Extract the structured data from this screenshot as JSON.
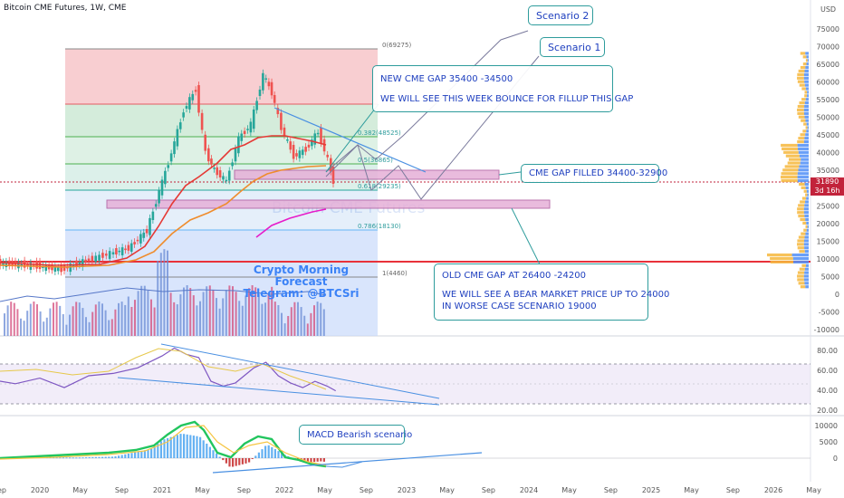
{
  "header": {
    "title": "Bitcoin CME Futures, 1W, CME",
    "currency": "USD"
  },
  "price_tag": {
    "price": "31890",
    "countdown": "3d 16h"
  },
  "forecast": {
    "line1": "Crypto Morning Forecast",
    "line2": "Telegram: @BTCSri"
  },
  "watermark": "Bitcoin CME Futures",
  "annotations": {
    "scenario2": "Scenario 2",
    "scenario1": "Scenario 1",
    "new_gap": [
      "NEW CME GAP 35400 -34500",
      "WE WILL SEE THIS WEEK BOUNCE FOR FILLUP THIS GAP"
    ],
    "gap_filled": "CME GAP FILLED 34400-32900",
    "old_gap": [
      "OLD CME GAP AT 26400 -24200",
      "WE WILL SEE A BEAR MARKET PRICE UP TO 24000",
      "IN WORSE CASE SCENARIO 19000"
    ],
    "macd": "MACD Bearish scenario"
  },
  "fib_labels": [
    {
      "label": "0(69275)",
      "price": 69275
    },
    {
      "label": "0.382(48525)",
      "price": 48525
    },
    {
      "label": "0.5(36865)",
      "price": 36865
    },
    {
      "label": "0.618(29235)",
      "price": 29235
    },
    {
      "label": "0.786(18130)",
      "price": 18130
    },
    {
      "label": "1(4460)",
      "price": 4460
    }
  ],
  "colors": {
    "accent_red": "#e8313a",
    "gap_fill": "#e6b0d8",
    "teal": "#2e9c9c",
    "annotation_text": "#1e3fbf",
    "up": "#26a69a",
    "down": "#ef5350",
    "ema_red": "#e53935",
    "ema_orange": "#ef8c2c"
  },
  "chart_data": [
    {
      "type": "line",
      "panel": "price",
      "title": "Bitcoin CME Futures, 1W, CME",
      "y_ticks": [
        75000,
        70000,
        65000,
        60000,
        55000,
        50000,
        45000,
        40000,
        35000,
        30000,
        25000,
        20000,
        15000,
        10000,
        5000,
        0,
        -5000,
        -10000
      ],
      "y_tick_labels": [
        "75000",
        "70000",
        "65000",
        "60000",
        "55000",
        "50000",
        "45000",
        "40000",
        "35000",
        "30000",
        "25000",
        "20000",
        "15000",
        "10000",
        "5000",
        "0",
        "-5000",
        "-10000"
      ],
      "x_tick_labels": [
        "Sep",
        "2020",
        "May",
        "Sep",
        "2021",
        "May",
        "Sep",
        "2022",
        "May",
        "Sep",
        "2023",
        "May",
        "Sep",
        "2024",
        "May",
        "Sep",
        "2025",
        "May",
        "Sep",
        "2026",
        "May"
      ],
      "ylim": [
        -10000,
        78000
      ],
      "last_price": 31890,
      "series": [
        {
          "x": [
            2019.6,
            2019.8,
            2020.0,
            2020.2,
            2020.4,
            2020.6,
            2020.75,
            2020.9,
            2021.0,
            2021.1,
            2021.2,
            2021.3,
            2021.38,
            2021.45,
            2021.55,
            2021.65,
            2021.75,
            2021.85,
            2021.92,
            2022.0,
            2022.1,
            2022.2,
            2022.3,
            2022.38,
            2022.42
          ],
          "values": [
            9000,
            8500,
            8000,
            7000,
            9500,
            11500,
            13000,
            18000,
            29000,
            40000,
            52000,
            58000,
            40000,
            35000,
            32000,
            44000,
            48000,
            62000,
            57000,
            47000,
            39000,
            41000,
            46000,
            38000,
            31890
          ]
        }
      ]
    },
    {
      "type": "line",
      "panel": "RSI",
      "y_ticks": [
        80,
        60,
        40,
        20
      ],
      "y_tick_labels": [
        "80.00",
        "60.00",
        "40.00",
        "20.00"
      ],
      "ylim": [
        15,
        95
      ],
      "series": [
        {
          "x": [
            2019.6,
            2019.8,
            2020.0,
            2020.2,
            2020.4,
            2020.6,
            2020.8,
            2021.0,
            2021.1,
            2021.2,
            2021.3,
            2021.4,
            2021.5,
            2021.6,
            2021.75,
            2021.85,
            2021.95,
            2022.05,
            2022.15,
            2022.25,
            2022.35,
            2022.42
          ],
          "values": [
            50,
            45,
            52,
            40,
            55,
            58,
            65,
            80,
            90,
            82,
            78,
            48,
            42,
            46,
            65,
            72,
            55,
            46,
            40,
            48,
            42,
            36
          ]
        }
      ]
    },
    {
      "type": "bar",
      "panel": "MACD",
      "y_ticks": [
        10000,
        5000,
        0
      ],
      "y_tick_labels": [
        "10000",
        "5000",
        "0"
      ],
      "ylim": [
        -4000,
        12000
      ],
      "series": [
        {
          "x": [
            2020.0,
            2020.3,
            2020.6,
            2020.9,
            2021.0,
            2021.15,
            2021.3,
            2021.45,
            2021.55,
            2021.7,
            2021.85,
            2022.0,
            2022.15,
            2022.3,
            2022.42
          ],
          "values": [
            300,
            200,
            500,
            3000,
            6000,
            8000,
            7000,
            1000,
            -3000,
            -1500,
            4500,
            1000,
            -1500,
            -1000,
            -2000
          ]
        }
      ]
    }
  ]
}
